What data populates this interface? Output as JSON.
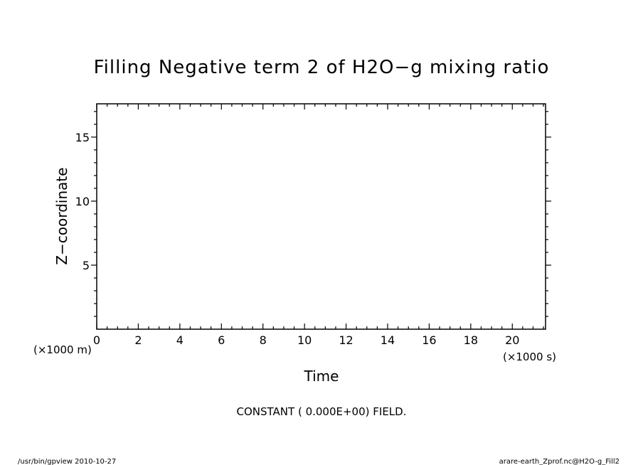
{
  "chart_data": {
    "type": "contour",
    "title": "Filling Negative term 2 of H2O−g mixing ratio",
    "xlabel": "Time",
    "ylabel": "Z−coordinate",
    "x_unit": "(×1000 s)",
    "y_unit": "(×1000 m)",
    "xlim": [
      0,
      21.6
    ],
    "ylim": [
      0,
      17.6
    ],
    "x_ticks": [
      0,
      2,
      4,
      6,
      8,
      10,
      12,
      14,
      16,
      18,
      20
    ],
    "y_ticks": [
      5,
      10,
      15
    ],
    "x_minor_step": 0.5,
    "y_minor_step": 1,
    "note": "CONSTANT ( 0.000E+00) FIELD.",
    "field_value": 0.0,
    "series": []
  },
  "footer": {
    "left": "/usr/bin/gpview  2010-10-27",
    "right": "arare-earth_Zprof.nc@H2O-g_Fill2"
  }
}
